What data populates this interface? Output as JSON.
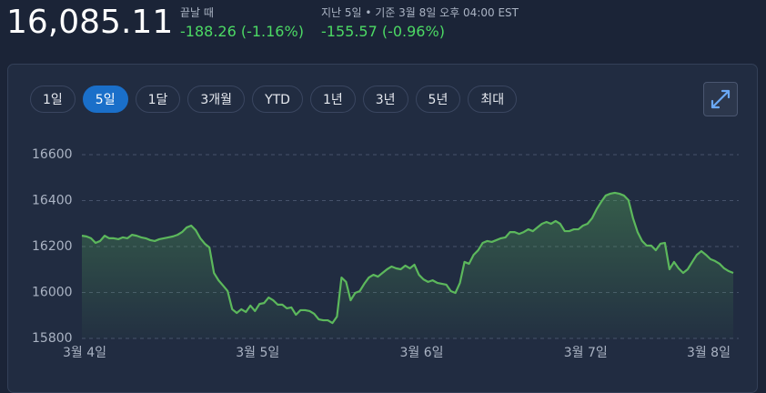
{
  "header": {
    "price": "16,085.11",
    "close_label": "끝날 때",
    "close_change": "-188.26 (-1.16%)",
    "period_label": "지난 5일 • 기준 3월 8일 오후 04:00 EST",
    "period_change": "-155.57 (-0.96%)"
  },
  "range_buttons": {
    "labels": [
      "1일",
      "5일",
      "1달",
      "3개월",
      "YTD",
      "1년",
      "3년",
      "5년",
      "최대"
    ],
    "selected": 1
  },
  "chart_data": {
    "type": "line",
    "grid": true,
    "x": [
      0,
      1,
      2,
      3,
      4,
      5,
      6,
      7,
      8,
      9,
      10,
      11,
      12,
      13,
      14,
      15,
      16,
      17,
      18,
      19,
      20,
      21,
      22,
      23,
      24,
      25,
      26,
      27,
      28,
      29,
      30,
      31,
      32,
      33,
      34,
      35,
      36,
      37,
      38,
      39,
      40,
      41,
      42,
      43,
      44,
      45,
      46,
      47,
      48,
      49,
      50,
      51,
      52,
      53,
      54,
      55,
      56,
      57,
      58,
      59,
      60,
      61,
      62,
      63,
      64,
      65,
      66,
      67,
      68,
      69,
      70,
      71,
      72,
      73,
      74,
      75,
      76,
      77,
      78,
      79,
      80,
      81,
      82,
      83,
      84,
      85,
      86,
      87,
      88,
      89,
      90,
      91,
      92,
      93,
      94,
      95,
      96,
      97,
      98,
      99,
      100,
      101,
      102,
      103,
      104,
      105,
      106,
      107,
      108,
      109,
      110,
      111,
      112,
      113,
      114,
      115,
      116,
      117,
      118,
      119,
      120,
      121,
      122,
      123,
      124,
      125,
      126,
      127,
      128,
      129,
      130,
      131,
      132,
      133,
      134,
      135,
      136,
      137,
      138,
      139,
      140,
      141,
      142,
      143
    ],
    "series": [
      {
        "color": "#5cb85c",
        "values": [
          16247,
          16244,
          16236,
          16216,
          16224,
          16247,
          16236,
          16236,
          16232,
          16240,
          16236,
          16251,
          16247,
          16240,
          16236,
          16228,
          16224,
          16232,
          16236,
          16240,
          16244,
          16251,
          16263,
          16283,
          16291,
          16271,
          16236,
          16212,
          16196,
          16085,
          16053,
          16030,
          16006,
          15927,
          15911,
          15927,
          15915,
          15943,
          15919,
          15950,
          15954,
          15978,
          15966,
          15947,
          15947,
          15931,
          15935,
          15903,
          15923,
          15923,
          15919,
          15907,
          15883,
          15879,
          15879,
          15867,
          15895,
          16065,
          16046,
          15966,
          15998,
          16006,
          16038,
          16065,
          16077,
          16069,
          16085,
          16101,
          16113,
          16105,
          16101,
          16117,
          16105,
          16121,
          16077,
          16057,
          16046,
          16053,
          16042,
          16038,
          16034,
          16006,
          15998,
          16042,
          16133,
          16125,
          16164,
          16184,
          16216,
          16224,
          16220,
          16228,
          16236,
          16240,
          16263,
          16263,
          16255,
          16263,
          16275,
          16267,
          16283,
          16299,
          16307,
          16299,
          16311,
          16299,
          16267,
          16267,
          16275,
          16275,
          16291,
          16299,
          16323,
          16362,
          16394,
          16422,
          16430,
          16434,
          16430,
          16422,
          16402,
          16323,
          16263,
          16224,
          16204,
          16204,
          16184,
          16212,
          16216,
          16101,
          16133,
          16105,
          16085,
          16101,
          16133,
          16164,
          16180,
          16164,
          16145,
          16137,
          16125,
          16105,
          16093,
          16085
        ]
      }
    ],
    "xlim": [
      0,
      143
    ],
    "xticks": [
      {
        "value": 0,
        "label": "3월 4일"
      },
      {
        "value": 38,
        "label": "3월 5일"
      },
      {
        "value": 74,
        "label": "3월 6일"
      },
      {
        "value": 110,
        "label": "3월 7일"
      },
      {
        "value": 137,
        "label": "3월 8일"
      }
    ],
    "ylim": [
      15800,
      16600
    ],
    "yticks": [
      15800,
      16000,
      16200,
      16400,
      16600
    ]
  }
}
